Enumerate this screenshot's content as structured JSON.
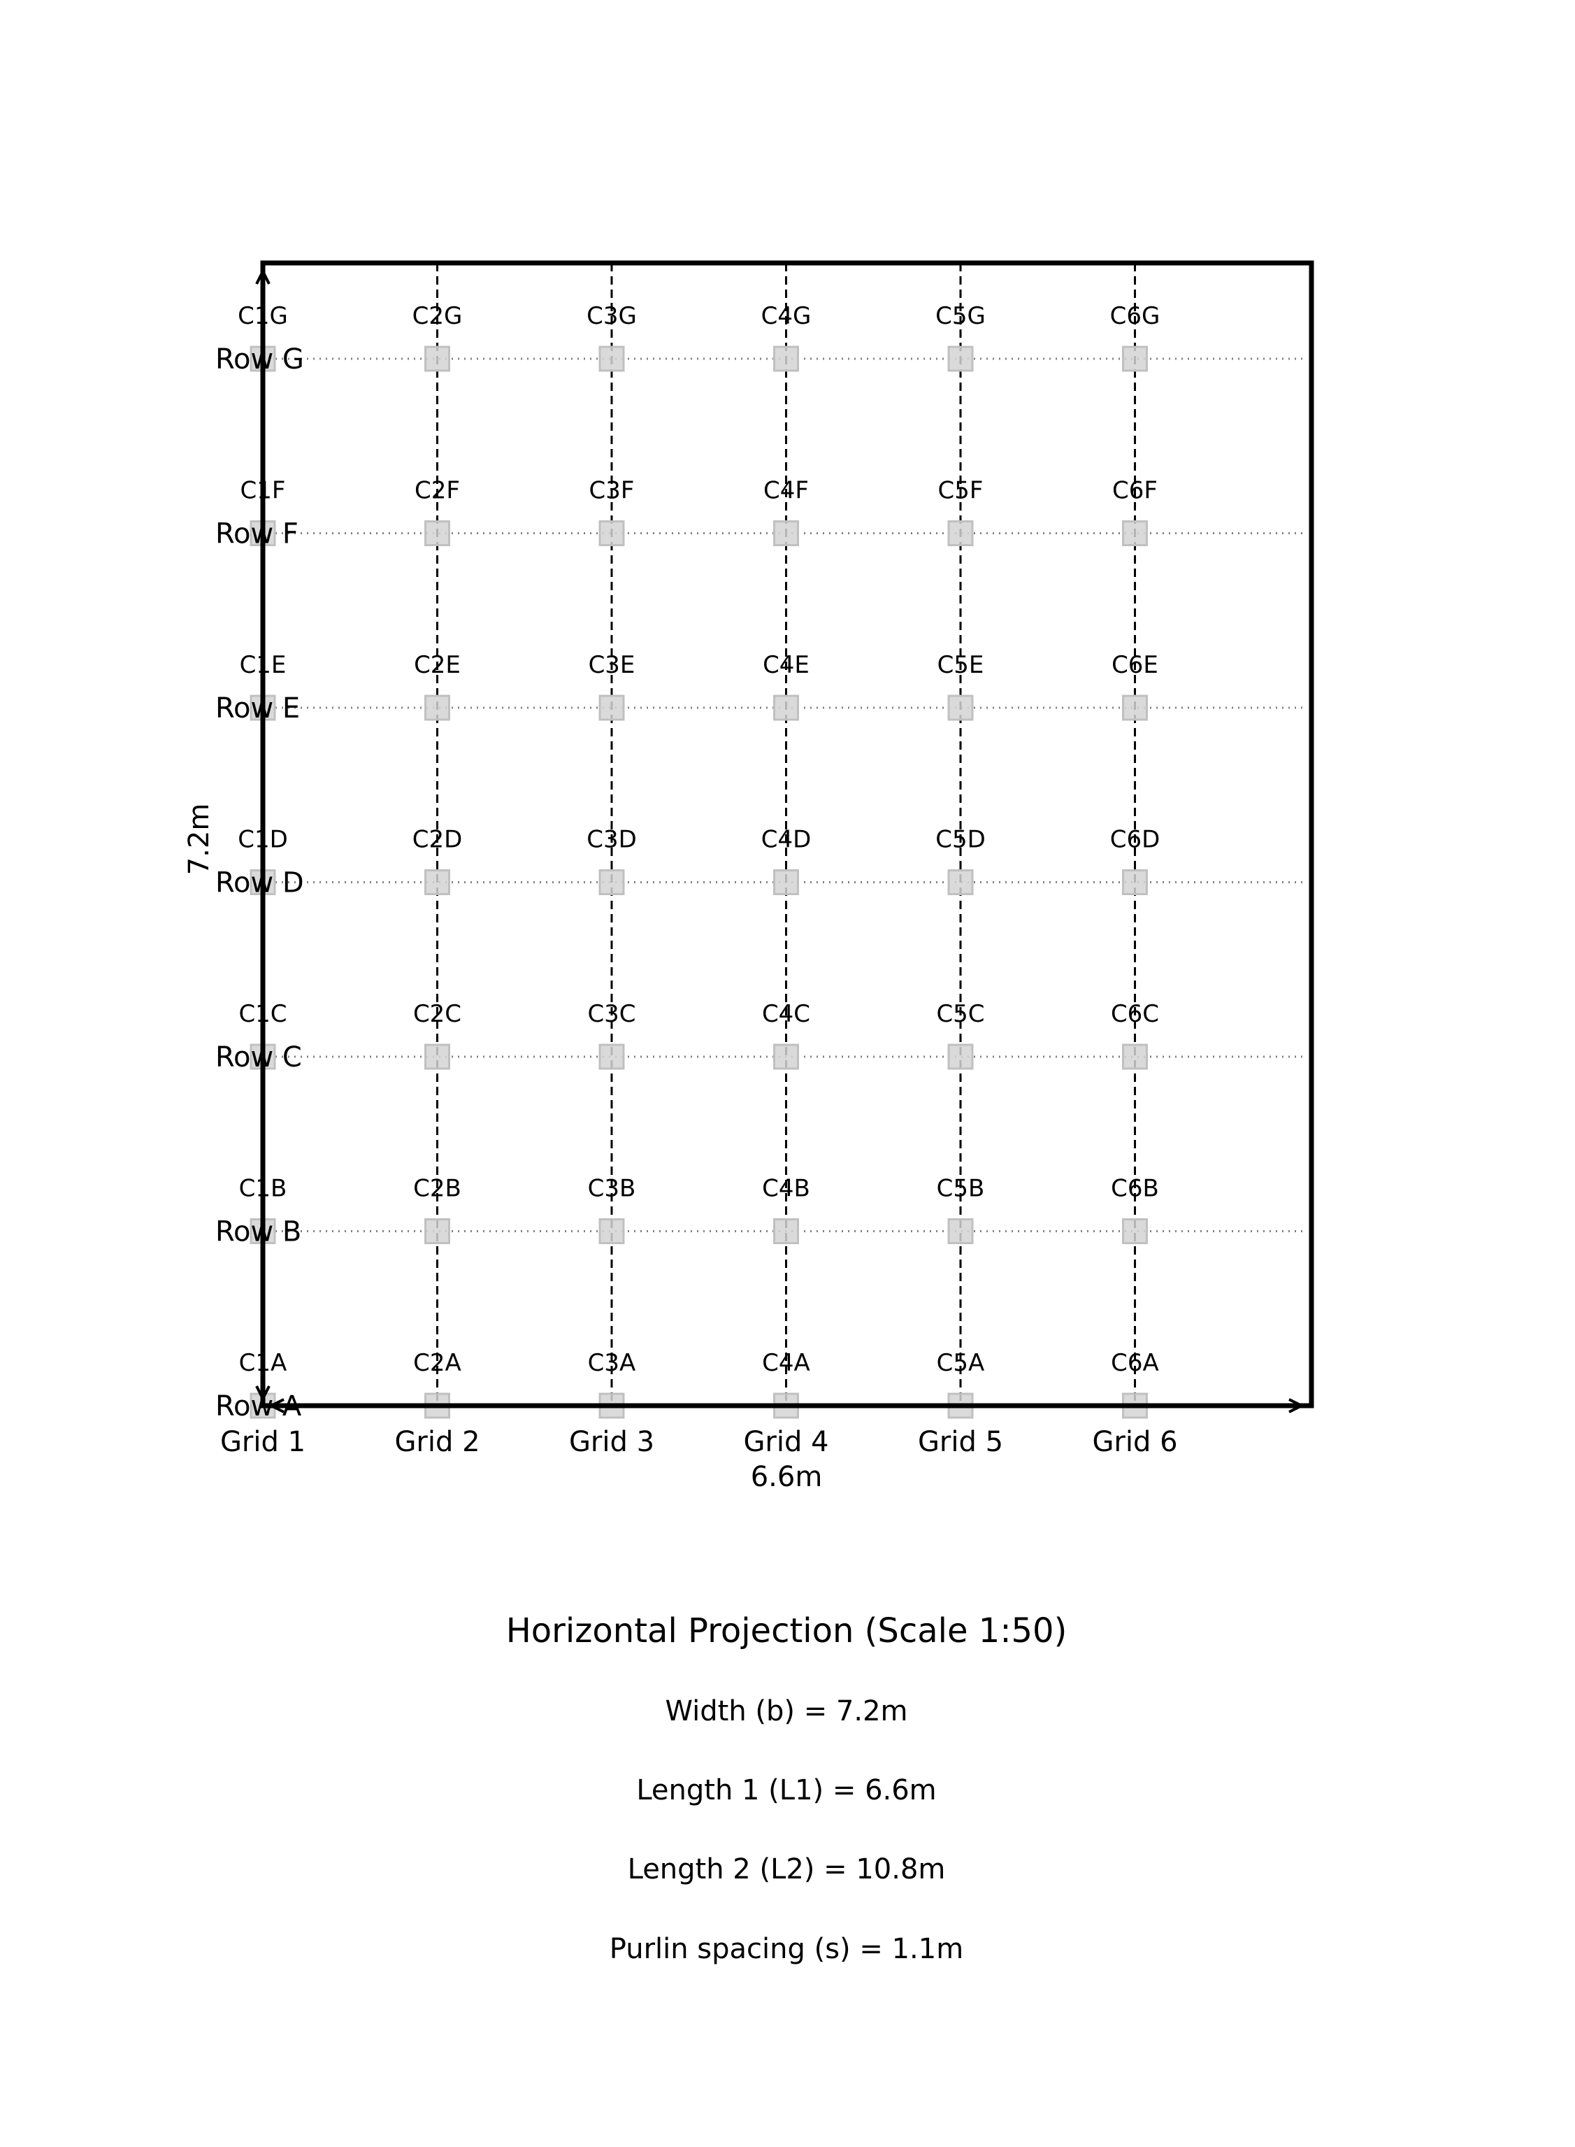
{
  "diagram": {
    "grids": [
      {
        "label": "Grid 1",
        "index": 1
      },
      {
        "label": "Grid 2",
        "index": 2
      },
      {
        "label": "Grid 3",
        "index": 3
      },
      {
        "label": "Grid 4",
        "index": 4
      },
      {
        "label": "Grid 5",
        "index": 5
      },
      {
        "label": "Grid 6",
        "index": 6
      }
    ],
    "rows": [
      {
        "label": "Row A",
        "letter": "A"
      },
      {
        "label": "Row B",
        "letter": "B"
      },
      {
        "label": "Row C",
        "letter": "C"
      },
      {
        "label": "Row D",
        "letter": "D"
      },
      {
        "label": "Row E",
        "letter": "E"
      },
      {
        "label": "Row F",
        "letter": "F"
      },
      {
        "label": "Row G",
        "letter": "G"
      }
    ],
    "column_label_prefix": "C",
    "horizontal_dimension": "6.6m",
    "vertical_dimension": "7.2m",
    "colors": {
      "frame": "#000000",
      "column_fill": "#d3d3d3",
      "column_stroke": "#c0c0c0",
      "row_line": "#808080",
      "grid_line": "#000000"
    }
  },
  "caption": {
    "title": "Horizontal Projection (Scale 1:50)",
    "lines": [
      "Width (b) = 7.2m",
      "Length 1 (L1) = 6.6m",
      "Length 2 (L2) = 10.8m",
      "Purlin spacing (s) = 1.1m"
    ]
  }
}
